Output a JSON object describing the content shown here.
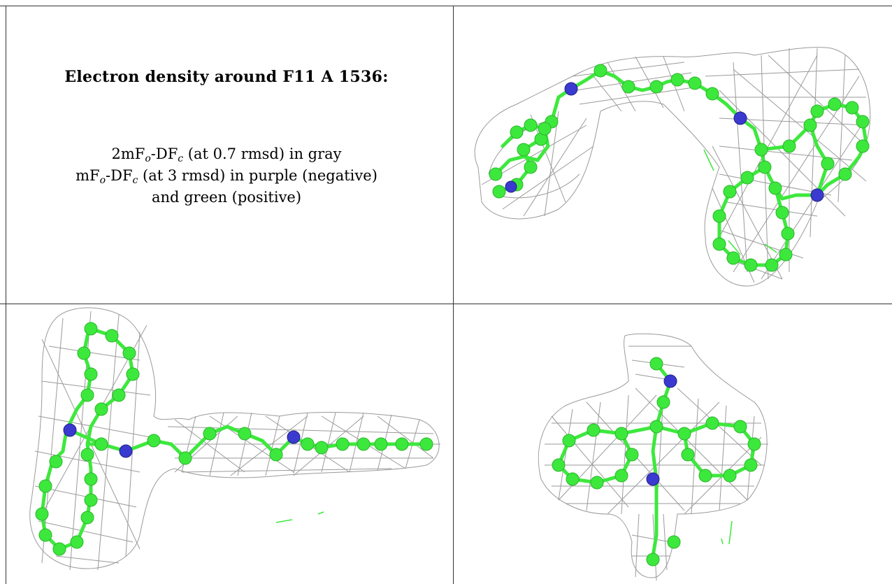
{
  "header": {
    "title": "Electron density around F11 A 1536:"
  },
  "legend": {
    "line1_a": "2mF",
    "line1_sub_o": "o",
    "line1_b": "-DF",
    "line1_sub_c": "c",
    "line1_rest": " (at 0.7 rmsd) in gray",
    "line2_a": "mF",
    "line2_sub_o": "o",
    "line2_b": "-DF",
    "line2_sub_c": "c",
    "line2_rest": " (at 3 rmsd) in purple (negative)",
    "line3": "and green (positive)"
  },
  "colors": {
    "mesh": "#9a9a9a",
    "carbon": "#3de83d",
    "nitrogen": "#3a3ad0",
    "grid_line": "#333333"
  },
  "views": [
    {
      "id": "view-top-right"
    },
    {
      "id": "view-bottom-left"
    },
    {
      "id": "view-bottom-right"
    }
  ]
}
